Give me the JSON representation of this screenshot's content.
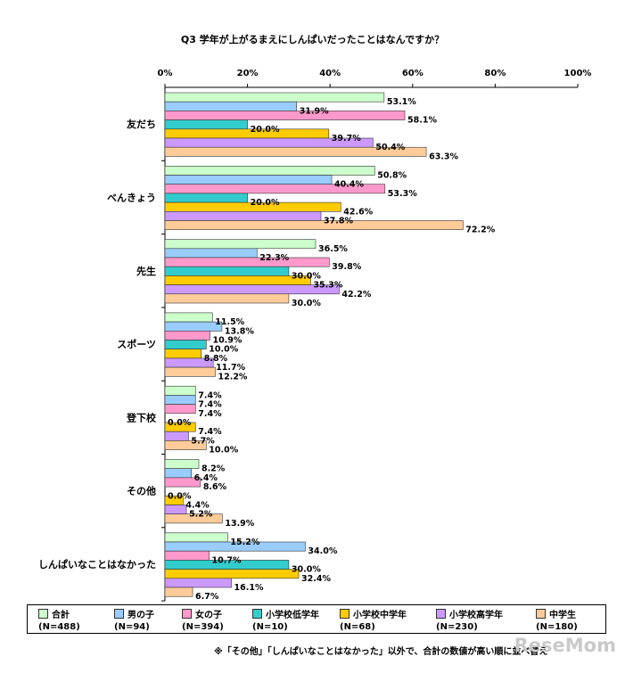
{
  "chart_data": {
    "type": "bar",
    "orientation": "horizontal",
    "title": "Q3 学年が上がるまえにしんぱいだったことはなんですか？",
    "categories": [
      "友だち",
      "べんきょう",
      "先生",
      "スポーツ",
      "登下校",
      "その他",
      "しんぱいなことはなかった"
    ],
    "x_ticks": [
      "0%",
      "20%",
      "40%",
      "60%",
      "80%",
      "100%"
    ],
    "xlim": [
      0,
      100
    ],
    "grid": false,
    "legend_position": "bottom",
    "series": [
      {
        "name": "合計",
        "n": "(N=488)",
        "color": "#ccffcc",
        "values": [
          53.1,
          50.8,
          36.5,
          11.5,
          7.4,
          8.2,
          15.2
        ],
        "labels": [
          "53.1%",
          "50.8%",
          "36.5%",
          "11.5%",
          "7.4%",
          "8.2%",
          "15.2%"
        ]
      },
      {
        "name": "男の子",
        "n": "(N=94)",
        "color": "#99ccff",
        "values": [
          31.9,
          40.4,
          22.3,
          13.8,
          7.4,
          6.4,
          34.0
        ],
        "labels": [
          "31.9%",
          "40.4%",
          "22.3%",
          "13.8%",
          "7.4%",
          "6.4%",
          "34.0%"
        ]
      },
      {
        "name": "女の子",
        "n": "(N=394)",
        "color": "#ff99cc",
        "values": [
          58.1,
          53.3,
          39.8,
          10.9,
          7.4,
          8.6,
          10.7
        ],
        "labels": [
          "58.1%",
          "53.3%",
          "39.8%",
          "10.9%",
          "7.4%",
          "8.6%",
          "10.7%"
        ]
      },
      {
        "name": "小学校低学年",
        "n": "(N=10)",
        "color": "#33cccc",
        "values": [
          20.0,
          20.0,
          30.0,
          10.0,
          0.0,
          0.0,
          30.0
        ],
        "labels": [
          "20.0%",
          "20.0%",
          "30.0%",
          "10.0%",
          "0.0%",
          "0.0%",
          "30.0%"
        ]
      },
      {
        "name": "小学校中学年",
        "n": "(N=68)",
        "color": "#ffcc00",
        "values": [
          39.7,
          42.6,
          35.3,
          8.8,
          7.4,
          4.4,
          32.4
        ],
        "labels": [
          "39.7%",
          "42.6%",
          "35.3%",
          "8.8%",
          "7.4%",
          "4.4%",
          "32.4%"
        ]
      },
      {
        "name": "小学校高学年",
        "n": "(N=230)",
        "color": "#cc99ff",
        "values": [
          50.4,
          37.8,
          42.2,
          11.7,
          5.7,
          5.2,
          16.1
        ],
        "labels": [
          "50.4%",
          "37.8%",
          "42.2%",
          "11.7%",
          "5.7%",
          "5.2%",
          "16.1%"
        ]
      },
      {
        "name": "中学生",
        "n": "(N=180)",
        "color": "#ffcc99",
        "values": [
          63.3,
          72.2,
          30.0,
          12.2,
          10.0,
          13.9,
          6.7
        ],
        "labels": [
          "63.3%",
          "72.2%",
          "30.0%",
          "12.2%",
          "10.0%",
          "13.9%",
          "6.7%"
        ]
      }
    ],
    "footnote": "※「その他」「しんぱいなことはなかった」以外で、合計の数値が高い順に並べ替え",
    "watermark": "ReseMom"
  }
}
